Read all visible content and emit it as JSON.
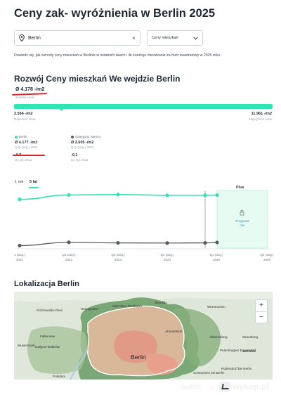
{
  "page": {
    "title": "Ceny zak- wyróżnienia w Berlin 2025",
    "description": "Dowiedz się, jak wzrosły ceny mieszkań w Berlinie w ostatnich latach i ile kosztuje mieszkanie za metr kwadratowy w 2025 roku."
  },
  "search": {
    "value": "Berlin",
    "clear_label": "×"
  },
  "select": {
    "value": "Ceny mieszkań"
  },
  "prices": {
    "section_title": "Rozwój Ceny mieszkań We wejdzie Berlin",
    "average": "Ø 4.178 -/m2",
    "average_label": "Średnia cena",
    "min_value": "2.556 -/m2",
    "min_label": "Najniższa cena",
    "max_value": "11.961 -/m2",
    "max_label": "Najwyższa cena"
  },
  "legend": {
    "berlin": {
      "name": "Berlin",
      "value": "Ø 4.177 -/m2",
      "since": "Q Q (ang.) 2024",
      "change": "-0,5",
      "change_label": "Do Q1 2022",
      "color": "#2ee6b4"
    },
    "category": {
      "name": "Kategoria: Niemcy",
      "value": "Ø 2.605 -/m2",
      "since": "Q Q (ang.) 2024",
      "change": "-0,1",
      "change_label": "Do Q1 2022",
      "color": "#555b61"
    }
  },
  "periods": [
    {
      "label": "1 rok"
    },
    {
      "label": "5 lat"
    }
  ],
  "chart": {
    "forecast_label": "Plus",
    "forecast_caption_1": "Prognoza",
    "forecast_caption_2": "cen",
    "x_ticks": [
      {
        "top": "1 (ang.)",
        "bottom": "2021"
      },
      {
        "top": "Q1 (ang.)",
        "bottom": "2022"
      },
      {
        "top": "Q1 (ang.)",
        "bottom": "2023"
      },
      {
        "top": "Q1 (ang.)",
        "bottom": "2024"
      },
      {
        "top": "Q1 (ang.)",
        "bottom": "2025"
      },
      {
        "top": "Q1 (ang.)",
        "bottom": "2026"
      }
    ]
  },
  "map": {
    "title": "Lokalizacja Berlin",
    "center_label": "Berlin",
    "places": [
      "Schönwalde-Glien",
      "Hennigsdorf",
      "Glienicke/ Nordbahn",
      "Wandlitz",
      "Werneuchen",
      "Falkensee",
      "Ahrensfelde",
      "Altlandsberg",
      "Dallgow-Döberitz",
      "Wustermark",
      "Strausberg",
      "Petershagen/ Eggersdorf",
      "Rehfelde",
      "Rüdersdorf bei Berlin",
      "Schöneiche bei Berlin",
      "Potsdam"
    ],
    "zoom_in": "+",
    "zoom_out": "−"
  },
  "footer": {
    "user": "del855",
    "separator": "z",
    "brand": "wykop.pl"
  },
  "colors": {
    "accent": "#2ee6b4",
    "annotation_red": "#d9262c",
    "secondary_line": "#555b61"
  },
  "chart_data": {
    "type": "line",
    "x": [
      "Q1 2021",
      "Q1 2022",
      "Q1 2023",
      "Q1 2024",
      "Q4 2024",
      "Q1 2025"
    ],
    "series": [
      {
        "name": "Berlin",
        "values": [
          4035,
          4180,
          4195,
          4170,
          4172,
          4177
        ]
      },
      {
        "name": "Kategoria: Niemcy",
        "values": [
          2500,
          2610,
          2590,
          2585,
          2590,
          2605
        ]
      }
    ]
  }
}
